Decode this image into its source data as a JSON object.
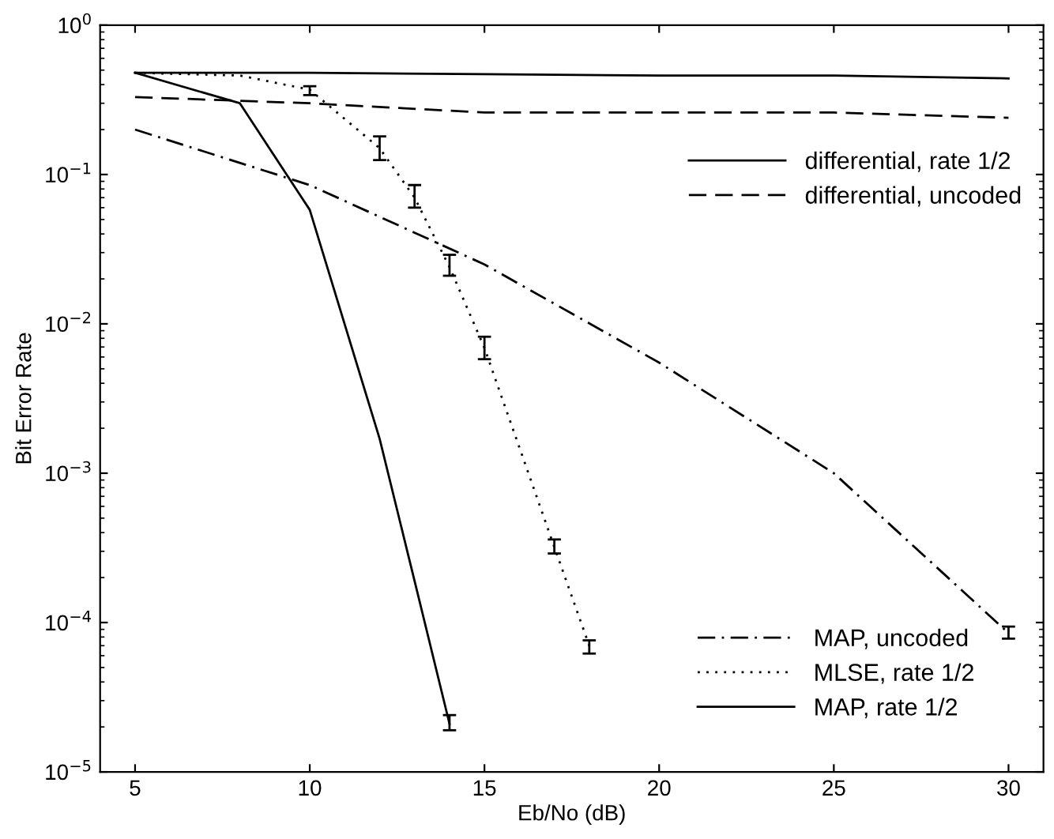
{
  "chart_data": {
    "type": "line",
    "xlabel": "Eb/No (dB)",
    "ylabel": "Bit Error Rate",
    "log": "y",
    "xlim": [
      4,
      31
    ],
    "xticks": [
      5,
      10,
      15,
      20,
      25,
      30
    ],
    "ylim": [
      1e-05,
      1
    ],
    "yticks": [
      {
        "value": 1e-05,
        "label": "10$^{−5}$"
      },
      {
        "value": 0.0001,
        "label": "10$^{−4}$"
      },
      {
        "value": 0.001,
        "label": "10$^{−3}$"
      },
      {
        "value": 0.01,
        "label": "10$^{−2}$"
      },
      {
        "value": 0.1,
        "label": "10$^{−1}$"
      },
      {
        "value": 1,
        "label": "10$^{0}$"
      }
    ],
    "grid": false,
    "legend": "right",
    "marker": "none",
    "series": [
      {
        "name": "differential, rate 1/2",
        "color": "#000000",
        "line_style": "solid",
        "x": [
          5,
          10,
          15,
          20,
          25,
          30
        ],
        "values": [
          0.48,
          0.48,
          0.47,
          0.46,
          0.46,
          0.44
        ]
      },
      {
        "name": "differential, uncoded",
        "color": "#000000",
        "line_style": "dashed",
        "x": [
          5,
          10,
          15,
          20,
          25,
          30
        ],
        "values": [
          0.33,
          0.3,
          0.26,
          0.26,
          0.26,
          0.24
        ]
      },
      {
        "name": "MAP, uncoded",
        "color": "#000000",
        "line_style": "dashdot",
        "x": [
          5,
          10,
          15,
          20,
          25,
          30
        ],
        "values": [
          0.2,
          0.085,
          0.025,
          0.0055,
          0.001,
          8.5e-05
        ],
        "errors": [
          null,
          null,
          null,
          null,
          null,
          [
            7.8e-05,
            9.4e-05
          ]
        ]
      },
      {
        "name": "MLSE, rate 1/2",
        "color": "#000000",
        "line_style": "dotted",
        "x": [
          5,
          8,
          10,
          12,
          13,
          14,
          15,
          17,
          18
        ],
        "values": [
          0.48,
          0.46,
          0.37,
          0.15,
          0.07,
          0.024,
          0.0069,
          0.00032,
          7e-05
        ],
        "errors": [
          null,
          null,
          [
            0.34,
            0.39
          ],
          [
            0.125,
            0.18
          ],
          [
            0.06,
            0.085
          ],
          [
            0.021,
            0.029
          ],
          [
            0.0058,
            0.0082
          ],
          [
            0.00029,
            0.00036
          ],
          [
            6.2e-05,
            7.6e-05
          ]
        ]
      },
      {
        "name": "MAP, rate 1/2",
        "color": "#000000",
        "line_style": "solid",
        "x": [
          5,
          8,
          10,
          12,
          13,
          14
        ],
        "values": [
          0.48,
          0.3,
          0.058,
          0.0017,
          0.00019,
          2.1e-05
        ],
        "errors": [
          null,
          null,
          null,
          null,
          null,
          [
            1.9e-05,
            2.4e-05
          ]
        ]
      }
    ]
  }
}
